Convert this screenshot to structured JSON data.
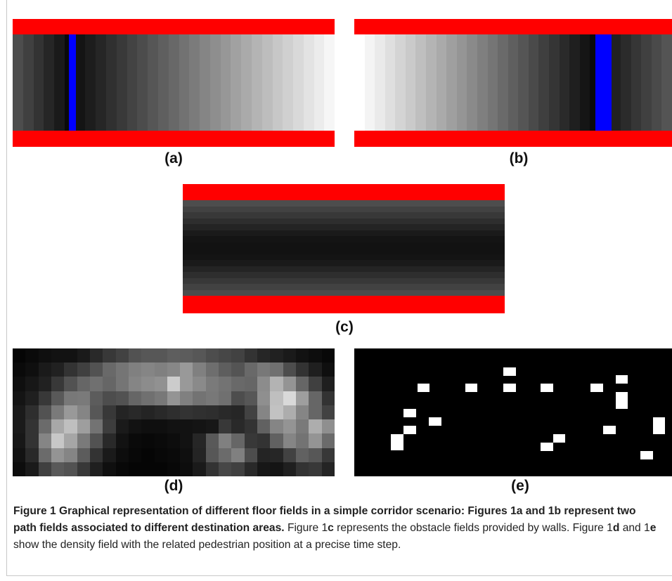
{
  "labels": {
    "a": "(a)",
    "b": "(b)",
    "c": "(c)",
    "d": "(d)",
    "e": "(e)"
  },
  "caption": {
    "lead_bold": "Figure 1 Graphical representation of different floor fields in a simple corridor scenario: Figures 1a and 1b represent two path fields associated to different destination areas.",
    "t1": " Figure 1",
    "b1": "c",
    "t2": " represents the obstacle fields provided by walls. Figure 1",
    "b2": "d",
    "t3": " and 1",
    "b3": "e",
    "t4": " show the density field with the related pedestrian position at a precise time step."
  },
  "colors": {
    "wall": "#ff0000",
    "destination": "#0000ff",
    "pedestrian": "#ffffff",
    "background": "#000000"
  },
  "density_grid": {
    "cols": 25,
    "rows": 9,
    "levels": [
      [
        0.02,
        0.04,
        0.06,
        0.07,
        0.07,
        0.1,
        0.16,
        0.22,
        0.26,
        0.32,
        0.34,
        0.34,
        0.37,
        0.36,
        0.34,
        0.3,
        0.28,
        0.26,
        0.2,
        0.15,
        0.13,
        0.1,
        0.07,
        0.05,
        0.03
      ],
      [
        0.04,
        0.06,
        0.1,
        0.13,
        0.2,
        0.25,
        0.32,
        0.41,
        0.46,
        0.5,
        0.52,
        0.5,
        0.53,
        0.6,
        0.5,
        0.43,
        0.37,
        0.33,
        0.41,
        0.47,
        0.44,
        0.3,
        0.2,
        0.12,
        0.06
      ],
      [
        0.06,
        0.09,
        0.13,
        0.22,
        0.32,
        0.4,
        0.44,
        0.4,
        0.46,
        0.52,
        0.55,
        0.57,
        0.8,
        0.6,
        0.54,
        0.48,
        0.45,
        0.41,
        0.4,
        0.55,
        0.7,
        0.58,
        0.4,
        0.25,
        0.12
      ],
      [
        0.08,
        0.12,
        0.22,
        0.35,
        0.47,
        0.48,
        0.36,
        0.3,
        0.32,
        0.4,
        0.44,
        0.47,
        0.58,
        0.5,
        0.45,
        0.47,
        0.44,
        0.3,
        0.34,
        0.56,
        0.75,
        0.85,
        0.62,
        0.4,
        0.2
      ],
      [
        0.1,
        0.18,
        0.32,
        0.48,
        0.6,
        0.52,
        0.34,
        0.22,
        0.14,
        0.16,
        0.14,
        0.16,
        0.18,
        0.2,
        0.19,
        0.18,
        0.16,
        0.15,
        0.26,
        0.52,
        0.76,
        0.68,
        0.52,
        0.4,
        0.26
      ],
      [
        0.1,
        0.2,
        0.42,
        0.66,
        0.75,
        0.62,
        0.45,
        0.24,
        0.1,
        0.07,
        0.06,
        0.06,
        0.07,
        0.07,
        0.08,
        0.09,
        0.22,
        0.16,
        0.2,
        0.38,
        0.52,
        0.58,
        0.48,
        0.68,
        0.56
      ],
      [
        0.09,
        0.2,
        0.52,
        0.78,
        0.65,
        0.48,
        0.32,
        0.16,
        0.07,
        0.04,
        0.03,
        0.04,
        0.05,
        0.07,
        0.15,
        0.35,
        0.5,
        0.4,
        0.22,
        0.2,
        0.38,
        0.52,
        0.45,
        0.58,
        0.42
      ],
      [
        0.07,
        0.16,
        0.42,
        0.58,
        0.52,
        0.36,
        0.2,
        0.1,
        0.05,
        0.03,
        0.02,
        0.03,
        0.04,
        0.06,
        0.14,
        0.34,
        0.42,
        0.5,
        0.3,
        0.14,
        0.15,
        0.26,
        0.38,
        0.34,
        0.22
      ],
      [
        0.05,
        0.1,
        0.25,
        0.35,
        0.32,
        0.22,
        0.12,
        0.06,
        0.03,
        0.02,
        0.02,
        0.02,
        0.03,
        0.05,
        0.1,
        0.2,
        0.28,
        0.25,
        0.16,
        0.09,
        0.08,
        0.12,
        0.2,
        0.22,
        0.14
      ]
    ]
  }
}
